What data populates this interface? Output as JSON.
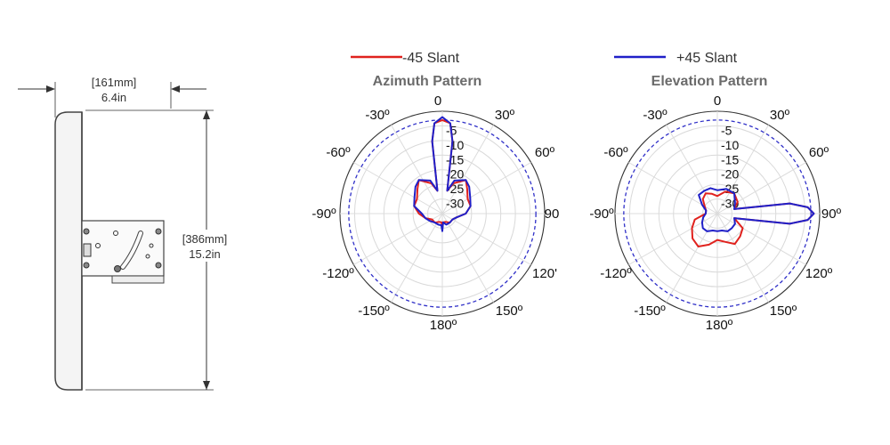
{
  "dimensions": {
    "width_mm": "[161mm]",
    "width_in": "6.4in",
    "height_mm": "[386mm]",
    "height_in": "15.2in"
  },
  "legend": {
    "series_neg": {
      "label": "-45 Slant",
      "color": "#e0221e"
    },
    "series_pos": {
      "label": "+45 Slant",
      "color": "#2020c8"
    }
  },
  "ring_labels": [
    "-5",
    "-10",
    "-15",
    "-20",
    "-25",
    "-30"
  ],
  "angle_labels": {
    "deg_0": "0",
    "deg_30": "30º",
    "deg_60": "60º",
    "deg_90_az": "90",
    "deg_90_el": "90º",
    "deg_120_az": "120'",
    "deg_120_el": "120º",
    "deg_150": "150º",
    "deg_180": "180º",
    "deg_m150": "-150º",
    "deg_m120": "-120º",
    "deg_m90": "-90º",
    "deg_m60": "-60º",
    "deg_m30": "-30º"
  },
  "chart_data": [
    {
      "type": "polar",
      "title": "Azimuth Pattern",
      "r_range_db": [
        -35,
        0
      ],
      "rings_db": [
        -5,
        -10,
        -15,
        -20,
        -25,
        -30
      ],
      "reference_circle_db": -3,
      "series": [
        {
          "name": "-45 Slant",
          "color": "#e0221e",
          "points": [
            [
              0,
              -3
            ],
            [
              5,
              -4
            ],
            [
              8,
              -10
            ],
            [
              12,
              -27
            ],
            [
              20,
              -24
            ],
            [
              35,
              -21
            ],
            [
              45,
              -23
            ],
            [
              60,
              -25
            ],
            [
              75,
              -25
            ],
            [
              90,
              -27
            ],
            [
              105,
              -30
            ],
            [
              120,
              -31
            ],
            [
              140,
              -31
            ],
            [
              160,
              -32
            ],
            [
              175,
              -32
            ],
            [
              180,
              -30
            ],
            [
              185,
              -32
            ],
            [
              200,
              -32
            ],
            [
              220,
              -31
            ],
            [
              240,
              -31
            ],
            [
              255,
              -29
            ],
            [
              270,
              -27
            ],
            [
              285,
              -25
            ],
            [
              300,
              -25
            ],
            [
              315,
              -23
            ],
            [
              325,
              -21
            ],
            [
              340,
              -24
            ],
            [
              348,
              -27
            ],
            [
              352,
              -10
            ],
            [
              355,
              -4
            ]
          ]
        },
        {
          "name": "+45 Slant",
          "color": "#2020c8",
          "points": [
            [
              0,
              -2
            ],
            [
              5,
              -4
            ],
            [
              8,
              -10
            ],
            [
              12,
              -27
            ],
            [
              20,
              -23
            ],
            [
              35,
              -21
            ],
            [
              45,
              -22
            ],
            [
              60,
              -24
            ],
            [
              75,
              -25
            ],
            [
              90,
              -27
            ],
            [
              105,
              -30
            ],
            [
              120,
              -31
            ],
            [
              140,
              -31
            ],
            [
              160,
              -31
            ],
            [
              175,
              -32
            ],
            [
              180,
              -29
            ],
            [
              185,
              -31
            ],
            [
              200,
              -31
            ],
            [
              220,
              -31
            ],
            [
              240,
              -30
            ],
            [
              255,
              -29
            ],
            [
              270,
              -28
            ],
            [
              285,
              -25
            ],
            [
              300,
              -24
            ],
            [
              315,
              -22
            ],
            [
              325,
              -21
            ],
            [
              340,
              -23
            ],
            [
              348,
              -27
            ],
            [
              352,
              -10
            ],
            [
              355,
              -4
            ]
          ]
        }
      ]
    },
    {
      "type": "polar",
      "title": "Elevation Pattern",
      "r_range_db": [
        -35,
        0
      ],
      "rings_db": [
        -5,
        -10,
        -15,
        -20,
        -25,
        -30
      ],
      "reference_circle_db": -3,
      "series": [
        {
          "name": "-45 Slant",
          "color": "#e0221e",
          "points": [
            [
              0,
              -29
            ],
            [
              20,
              -27
            ],
            [
              40,
              -26
            ],
            [
              60,
              -27
            ],
            [
              75,
              -29
            ],
            [
              82,
              -10
            ],
            [
              86,
              -4
            ],
            [
              90,
              -2
            ],
            [
              94,
              -4
            ],
            [
              98,
              -10
            ],
            [
              105,
              -29
            ],
            [
              120,
              -25
            ],
            [
              135,
              -24
            ],
            [
              150,
              -23
            ],
            [
              165,
              -25
            ],
            [
              180,
              -26
            ],
            [
              195,
              -24
            ],
            [
              210,
              -22
            ],
            [
              225,
              -23
            ],
            [
              240,
              -25
            ],
            [
              255,
              -27
            ],
            [
              270,
              -31
            ],
            [
              285,
              -31
            ],
            [
              300,
              -30
            ],
            [
              315,
              -28
            ],
            [
              330,
              -27
            ],
            [
              345,
              -28
            ]
          ]
        },
        {
          "name": "+45 Slant",
          "color": "#2020c8",
          "points": [
            [
              0,
              -27
            ],
            [
              20,
              -26
            ],
            [
              40,
              -26
            ],
            [
              60,
              -28
            ],
            [
              75,
              -29
            ],
            [
              82,
              -10
            ],
            [
              86,
              -4
            ],
            [
              90,
              -2
            ],
            [
              94,
              -4
            ],
            [
              98,
              -10
            ],
            [
              105,
              -29
            ],
            [
              120,
              -28
            ],
            [
              135,
              -28
            ],
            [
              150,
              -28
            ],
            [
              165,
              -29
            ],
            [
              180,
              -29
            ],
            [
              195,
              -29
            ],
            [
              210,
              -28
            ],
            [
              225,
              -28
            ],
            [
              240,
              -29
            ],
            [
              255,
              -30
            ],
            [
              270,
              -31
            ],
            [
              285,
              -31
            ],
            [
              300,
              -29
            ],
            [
              315,
              -26
            ],
            [
              330,
              -26
            ],
            [
              345,
              -26
            ]
          ]
        }
      ]
    }
  ]
}
